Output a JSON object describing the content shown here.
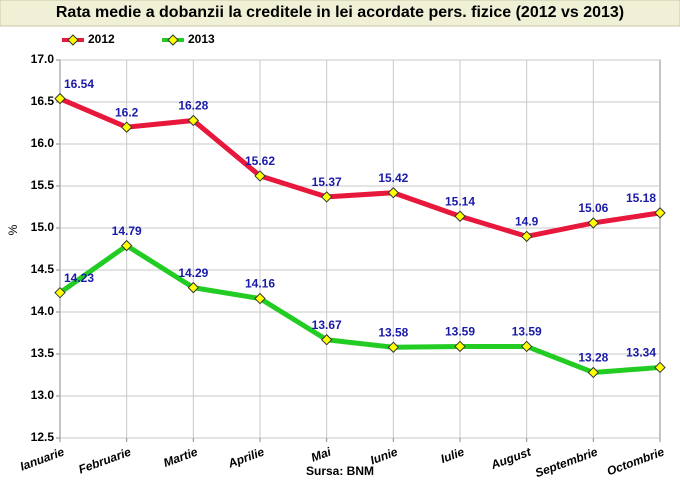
{
  "chart_data": {
    "type": "line",
    "title": "Rata medie a dobanzii la creditele in lei acordate pers. fizice (2012 vs 2013)",
    "y_label": "%",
    "source": "Sursa: BNM",
    "categories": [
      "Ianuarie",
      "Februarie",
      "Martie",
      "Aprilie",
      "Mai",
      "Iunie",
      "Iulie",
      "August",
      "Septembrie",
      "Octombrie"
    ],
    "series": [
      {
        "name": "2012",
        "color": "#e8183c",
        "values": [
          16.54,
          16.2,
          16.28,
          15.62,
          15.37,
          15.42,
          15.14,
          14.9,
          15.06,
          15.18
        ]
      },
      {
        "name": "2013",
        "color": "#22cc22",
        "values": [
          14.23,
          14.79,
          14.29,
          14.16,
          13.67,
          13.58,
          13.59,
          13.59,
          13.28,
          13.34
        ]
      }
    ],
    "ylim": [
      12.5,
      17.0
    ],
    "yticks": [
      12.5,
      {
        "value": 13.0,
        "label": "13.0"
      },
      13.5,
      {
        "value": 14.0,
        "label": "14.0"
      },
      14.5,
      {
        "value": 15.0,
        "label": "15.0"
      },
      15.5,
      {
        "value": 16.0,
        "label": "16.0"
      },
      16.5,
      {
        "value": 17.0,
        "label": "17.0"
      }
    ],
    "grid": true
  }
}
